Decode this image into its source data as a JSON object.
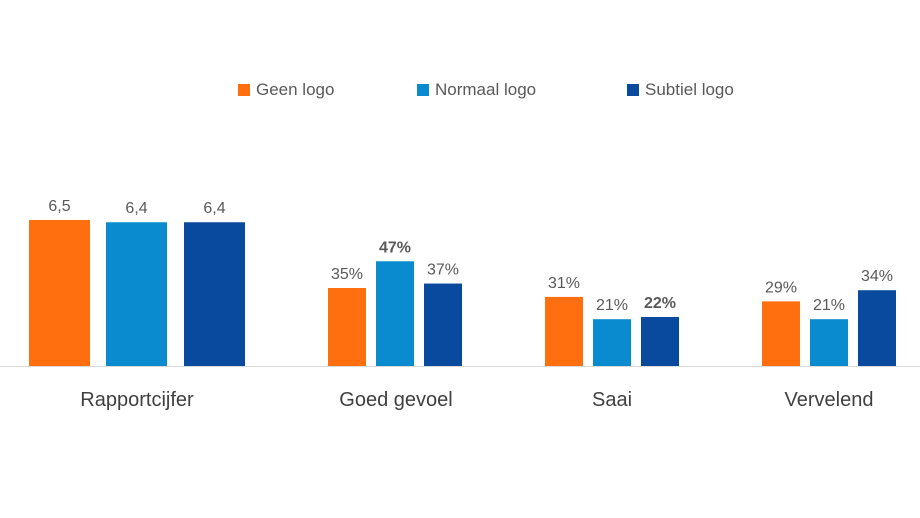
{
  "chart_data": {
    "type": "bar",
    "legend_position": "top",
    "grid": false,
    "series": [
      {
        "name": "Geen logo",
        "color": "#FF6F0F"
      },
      {
        "name": "Normaal logo",
        "color": "#0B8BCF"
      },
      {
        "name": "Subtiel logo",
        "color": "#0A4A9E"
      }
    ],
    "groups": [
      {
        "category": "Rapportcijfer",
        "values": [
          6.5,
          6.4,
          6.4
        ],
        "labels": [
          "6,5",
          "6,4",
          "6,4"
        ],
        "bold": [
          false,
          false,
          false
        ]
      },
      {
        "category": "Goed gevoel",
        "values": [
          35,
          47,
          37
        ],
        "labels": [
          "35%",
          "47%",
          "37%"
        ],
        "bold": [
          false,
          true,
          false
        ]
      },
      {
        "category": "Saai",
        "values": [
          31,
          21,
          22
        ],
        "labels": [
          "31%",
          "21%",
          "22%"
        ],
        "bold": [
          false,
          false,
          true
        ]
      },
      {
        "category": "Vervelend",
        "values": [
          29,
          21,
          34
        ],
        "labels": [
          "29%",
          "21%",
          "34%"
        ],
        "bold": [
          false,
          false,
          false
        ]
      }
    ]
  }
}
